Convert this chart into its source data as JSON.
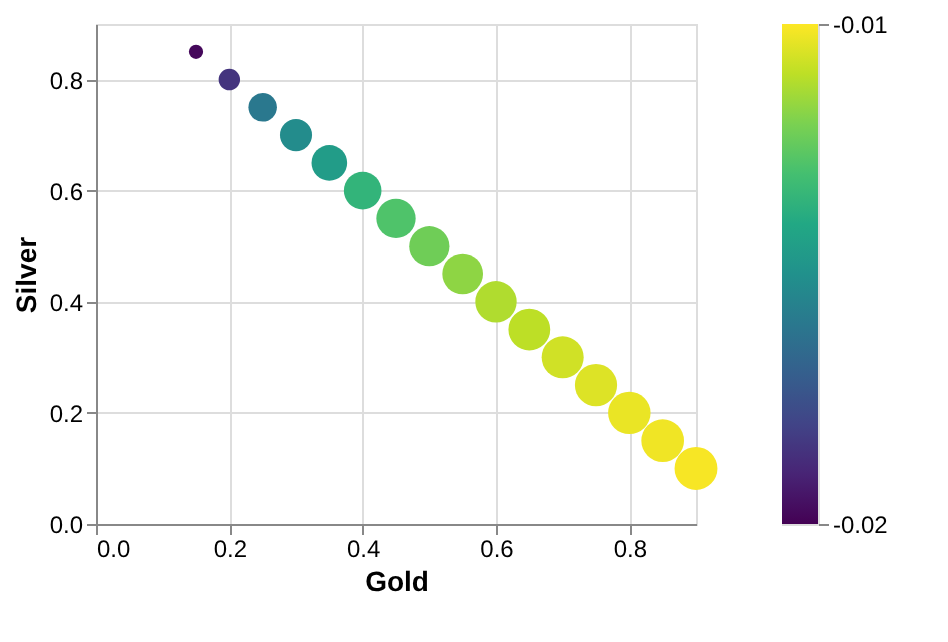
{
  "chart_data": {
    "type": "bubble",
    "xlabel": "Gold",
    "ylabel": "Silver",
    "x": [
      0.15,
      0.2,
      0.25,
      0.3,
      0.35,
      0.4,
      0.45,
      0.5,
      0.55,
      0.6,
      0.65,
      0.7,
      0.75,
      0.8,
      0.85,
      0.9
    ],
    "values": [
      0.85,
      0.8,
      0.75,
      0.7,
      0.65,
      0.6,
      0.55,
      0.5,
      0.45,
      0.4,
      0.35,
      0.3,
      0.25,
      0.2,
      0.15,
      0.1
    ],
    "sizes": [
      0.11,
      0.25,
      0.44,
      0.56,
      0.69,
      0.77,
      0.84,
      0.88,
      0.9,
      0.93,
      0.95,
      0.96,
      0.97,
      0.98,
      0.99,
      1
    ],
    "cvalues": [
      -0.0198,
      -0.0185,
      -0.016,
      -0.0152,
      -0.0145,
      -0.0135,
      -0.0128,
      -0.0122,
      -0.0117,
      -0.0112,
      -0.011,
      -0.0107,
      -0.0105,
      -0.0103,
      -0.0102,
      -0.0101
    ],
    "clim": [
      -0.02,
      -0.01
    ],
    "cticks": [
      -0.02,
      -0.01
    ],
    "xlim": [
      0,
      0.9
    ],
    "xticks": [
      {
        "value": 0,
        "label": "0.0"
      },
      0.2,
      0.4,
      0.6,
      0.8
    ],
    "ylim": [
      0,
      0.9
    ],
    "yticks": [
      {
        "value": 0,
        "label": "0.0"
      },
      0.2,
      0.4,
      0.6,
      0.8
    ],
    "grid": true
  }
}
